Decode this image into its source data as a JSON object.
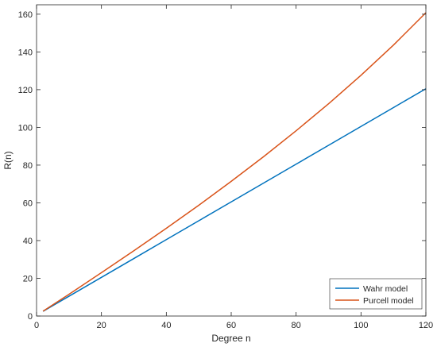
{
  "chart_data": {
    "type": "line",
    "title": "",
    "xlabel": "Degree n",
    "ylabel": "R(n)",
    "xlim": [
      0,
      120
    ],
    "ylim": [
      0,
      165
    ],
    "xticks": [
      "0",
      "20",
      "40",
      "60",
      "80",
      "100",
      "120"
    ],
    "yticks": [
      "0",
      "20",
      "40",
      "60",
      "80",
      "100",
      "120",
      "140",
      "160"
    ],
    "grid": false,
    "legend_position": "bottom-right",
    "series": [
      {
        "name": "Wahr model",
        "color": "#0072BD",
        "x": [
          2,
          10,
          20,
          30,
          40,
          50,
          60,
          70,
          80,
          90,
          100,
          110,
          120
        ],
        "y": [
          2.5,
          10.5,
          20.5,
          30.5,
          40.5,
          50.5,
          60.5,
          70.5,
          80.5,
          90.5,
          100.5,
          110.5,
          120.5
        ]
      },
      {
        "name": "Purcell model",
        "color": "#D95319",
        "x": [
          2,
          10,
          20,
          30,
          40,
          50,
          60,
          70,
          80,
          90,
          100,
          110,
          120
        ],
        "y": [
          2.6,
          11.5,
          23.0,
          34.6,
          46.5,
          58.7,
          71.4,
          84.5,
          98.2,
          112.5,
          127.6,
          143.6,
          160.8
        ]
      }
    ]
  }
}
